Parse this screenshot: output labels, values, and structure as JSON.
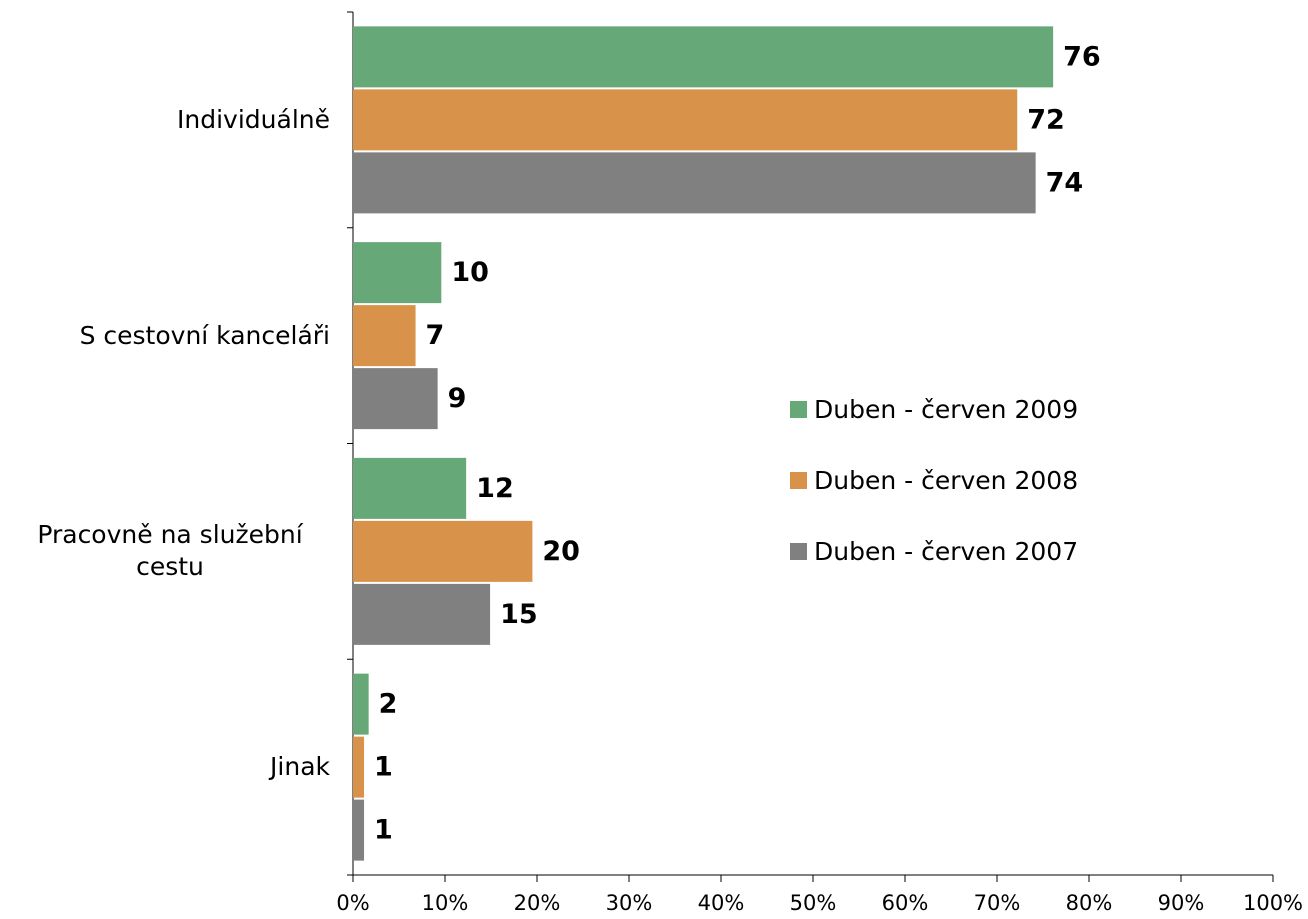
{
  "chart_data": {
    "type": "barh",
    "categories": [
      "Individuálně",
      "S cestovní kanceláři",
      "Pracovně na služební cestu",
      "Jinak"
    ],
    "series": [
      {
        "name": "Duben - červen 2009",
        "color": "#67a878",
        "values": [
          76.1,
          9.6,
          12.3,
          1.7
        ],
        "value_labels": [
          "76",
          "10",
          "12",
          "2"
        ]
      },
      {
        "name": "Duben - červen 2008",
        "color": "#d9924a",
        "values": [
          72.2,
          6.8,
          19.5,
          1.2
        ],
        "value_labels": [
          "72",
          "7",
          "20",
          "1"
        ]
      },
      {
        "name": "Duben - červen 2007",
        "color": "#808080",
        "values": [
          74.2,
          9.2,
          14.9,
          1.2
        ],
        "value_labels": [
          "74",
          "9",
          "15",
          "1"
        ]
      }
    ],
    "xlim": [
      0,
      100
    ],
    "xticks": [
      {
        "value": 0,
        "label": "0%"
      },
      {
        "value": 10,
        "label": "10%"
      },
      {
        "value": 20,
        "label": "20%"
      },
      {
        "value": 30,
        "label": "30%"
      },
      {
        "value": 40,
        "label": "40%"
      },
      {
        "value": 50,
        "label": "50%"
      },
      {
        "value": 60,
        "label": "60%"
      },
      {
        "value": 70,
        "label": "70%"
      },
      {
        "value": 80,
        "label": "80%"
      },
      {
        "value": 90,
        "label": "90%"
      },
      {
        "value": 100,
        "label": "100%"
      }
    ],
    "grid": false,
    "legend": "right"
  }
}
